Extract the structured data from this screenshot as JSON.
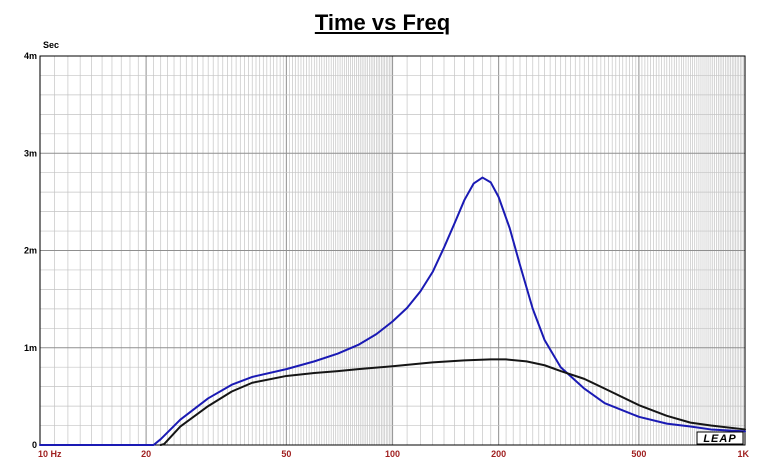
{
  "chart_data": {
    "type": "line",
    "title": "Time vs Freq",
    "ylabel": "Sec",
    "xlabel": "",
    "x_scale": "log",
    "xlim": [
      10,
      1000
    ],
    "ylim": [
      0,
      0.004
    ],
    "grid": true,
    "x_ticks": [
      {
        "value": 10,
        "label": "10  Hz"
      },
      {
        "value": 20,
        "label": "20"
      },
      {
        "value": 50,
        "label": "50"
      },
      {
        "value": 100,
        "label": "100"
      },
      {
        "value": 200,
        "label": "200"
      },
      {
        "value": 500,
        "label": "500"
      },
      {
        "value": 1000,
        "label": "1K"
      }
    ],
    "y_ticks": [
      {
        "value": 0,
        "label": "0"
      },
      {
        "value": 0.001,
        "label": "1m"
      },
      {
        "value": 0.002,
        "label": "2m"
      },
      {
        "value": 0.003,
        "label": "3m"
      },
      {
        "value": 0.004,
        "label": "4m"
      }
    ],
    "series": [
      {
        "color": "#1a1ab4",
        "points": [
          [
            10,
            0
          ],
          [
            21,
            0
          ],
          [
            22,
            6e-05
          ],
          [
            25,
            0.00026
          ],
          [
            30,
            0.00048
          ],
          [
            35,
            0.00062
          ],
          [
            40,
            0.0007
          ],
          [
            50,
            0.00078
          ],
          [
            60,
            0.00086
          ],
          [
            70,
            0.00094
          ],
          [
            80,
            0.00103
          ],
          [
            90,
            0.00114
          ],
          [
            100,
            0.00127
          ],
          [
            110,
            0.00141
          ],
          [
            120,
            0.00158
          ],
          [
            130,
            0.00178
          ],
          [
            140,
            0.00203
          ],
          [
            150,
            0.00228
          ],
          [
            160,
            0.00252
          ],
          [
            170,
            0.00269
          ],
          [
            180,
            0.00275
          ],
          [
            190,
            0.0027
          ],
          [
            200,
            0.00255
          ],
          [
            215,
            0.00223
          ],
          [
            230,
            0.00185
          ],
          [
            250,
            0.0014
          ],
          [
            270,
            0.00108
          ],
          [
            300,
            0.0008
          ],
          [
            350,
            0.00058
          ],
          [
            400,
            0.00043
          ],
          [
            500,
            0.00029
          ],
          [
            600,
            0.00022
          ],
          [
            700,
            0.00019
          ],
          [
            800,
            0.00016
          ],
          [
            1000,
            0.00014
          ]
        ]
      },
      {
        "color": "#151515",
        "points": [
          [
            22,
            0
          ],
          [
            22.5,
            1e-05
          ],
          [
            25,
            0.00019
          ],
          [
            30,
            0.0004
          ],
          [
            35,
            0.00055
          ],
          [
            40,
            0.00064
          ],
          [
            50,
            0.00071
          ],
          [
            60,
            0.00074
          ],
          [
            70,
            0.00076
          ],
          [
            80,
            0.00078
          ],
          [
            100,
            0.00081
          ],
          [
            130,
            0.00085
          ],
          [
            160,
            0.00087
          ],
          [
            190,
            0.00088
          ],
          [
            210,
            0.00088
          ],
          [
            240,
            0.00086
          ],
          [
            270,
            0.00082
          ],
          [
            300,
            0.00076
          ],
          [
            350,
            0.00068
          ],
          [
            400,
            0.00058
          ],
          [
            500,
            0.00041
          ],
          [
            600,
            0.0003
          ],
          [
            700,
            0.00023
          ],
          [
            800,
            0.0002
          ],
          [
            1000,
            0.00016
          ]
        ]
      }
    ]
  },
  "logo": {
    "text": "LEAP"
  }
}
